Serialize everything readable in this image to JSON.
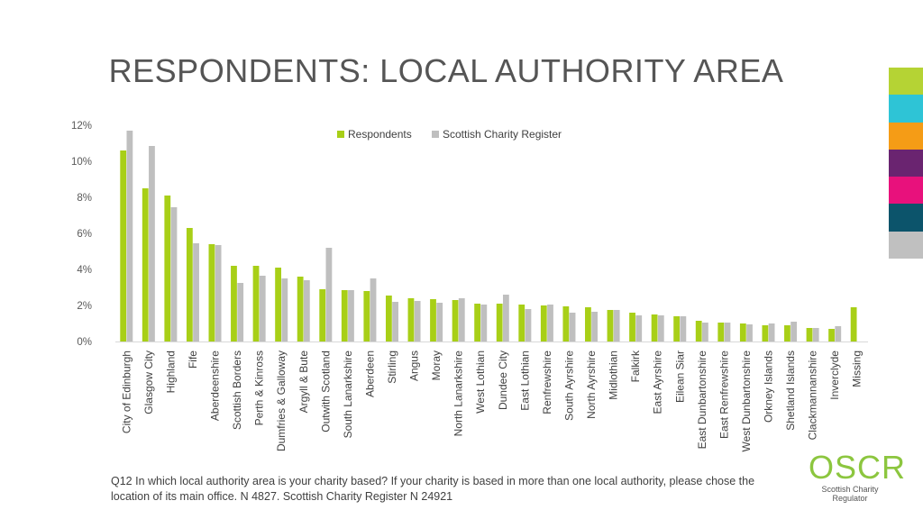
{
  "slide": {
    "title": "RESPONDENTS: LOCAL AUTHORITY AREA",
    "footnote": "Q12 In which local authority area is your charity based? If your charity is based in more than one local authority, please chose the location of its main office. N 4827. Scottish Charity Register N 24921",
    "logo_text": "OSCR",
    "logo_subtext": "Scottish Charity Regulator",
    "accent_swatches": [
      "#b5d334",
      "#2ec4d6",
      "#f59c16",
      "#6a2470",
      "#e8117c",
      "#0c546b",
      "#c0c0c0"
    ]
  },
  "chart_data": {
    "type": "bar",
    "title": "",
    "xlabel": "",
    "ylabel": "",
    "ylim": [
      0,
      12
    ],
    "yticks": [
      "0%",
      "2%",
      "4%",
      "6%",
      "8%",
      "10%",
      "12%"
    ],
    "grid": false,
    "legend_position": "top",
    "categories": [
      "City of Edinburgh",
      "Glasgow City",
      "Highland",
      "Fife",
      "Aberdeenshire",
      "Scottish Borders",
      "Perth & Kinross",
      "Dumfries & Galloway",
      "Argyll & Bute",
      "Outwith Scotland",
      "South Lanarkshire",
      "Aberdeen",
      "Stirling",
      "Angus",
      "Moray",
      "North Lanarkshire",
      "West Lothian",
      "Dundee City",
      "East Lothian",
      "Renfrewshire",
      "South Ayrshire",
      "North Ayrshire",
      "Midlothian",
      "Falkirk",
      "East Ayrshire",
      "Eilean Siar",
      "East Dunbartonshire",
      "East Renfrewshire",
      "West Dunbartonshire",
      "Orkney Islands",
      "Shetland Islands",
      "Clackmannanshire",
      "Inverclyde",
      "Missing"
    ],
    "series": [
      {
        "name": "Respondents",
        "color": "#a8cf17",
        "values": [
          10.6,
          8.5,
          8.1,
          6.3,
          5.4,
          4.2,
          4.2,
          4.1,
          3.6,
          2.9,
          2.85,
          2.8,
          2.55,
          2.4,
          2.35,
          2.3,
          2.1,
          2.1,
          2.05,
          2.0,
          1.95,
          1.9,
          1.75,
          1.6,
          1.5,
          1.4,
          1.15,
          1.05,
          1.0,
          0.9,
          0.9,
          0.75,
          0.7,
          1.9
        ]
      },
      {
        "name": "Scottish Charity Register",
        "color": "#bfbfbf",
        "values": [
          11.7,
          10.85,
          7.45,
          5.45,
          5.35,
          3.25,
          3.65,
          3.5,
          3.4,
          5.2,
          2.85,
          3.5,
          2.2,
          2.25,
          2.15,
          2.4,
          2.05,
          2.6,
          1.8,
          2.05,
          1.6,
          1.65,
          1.75,
          1.45,
          1.45,
          1.4,
          1.05,
          1.05,
          0.95,
          1.0,
          1.1,
          0.75,
          0.85,
          null
        ]
      }
    ]
  }
}
